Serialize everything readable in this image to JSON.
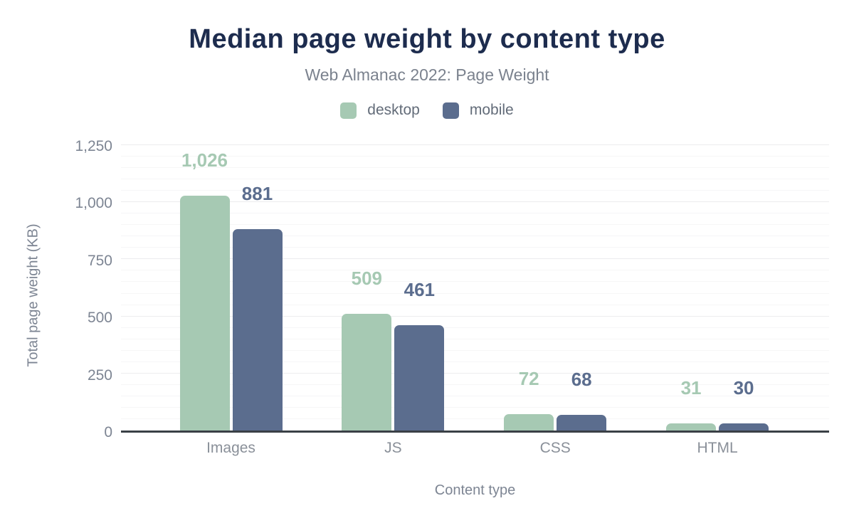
{
  "chart_data": {
    "type": "bar",
    "title": "Median page weight by content type",
    "subtitle": "Web Almanac 2022: Page Weight",
    "categories": [
      "Images",
      "JS",
      "CSS",
      "HTML"
    ],
    "series": [
      {
        "name": "desktop",
        "values": [
          1026,
          509,
          72,
          31
        ],
        "labels": [
          "1,026",
          "509",
          "72",
          "31"
        ],
        "color": "#a6c9b3"
      },
      {
        "name": "mobile",
        "values": [
          881,
          461,
          68,
          30
        ],
        "labels": [
          "881",
          "461",
          "68",
          "30"
        ],
        "color": "#5b6d8e"
      }
    ],
    "xlabel": "Content type",
    "ylabel": "Total page weight (KB)",
    "ylim": [
      0,
      1250
    ],
    "yticks": [
      {
        "value": 0,
        "label": "0"
      },
      {
        "value": 250,
        "label": "250"
      },
      {
        "value": 500,
        "label": "500"
      },
      {
        "value": 750,
        "label": "750"
      },
      {
        "value": 1000,
        "label": "1,000"
      },
      {
        "value": 1250,
        "label": "1,250"
      }
    ],
    "minor_grid_step": 50,
    "major_grid_step": 250,
    "grid": true,
    "legend_position": "top",
    "value_labels_shown": true
  },
  "colors": {
    "title_text": "#1d2c4e",
    "subtitle_text": "#7b828e",
    "axis_text": "#7d8593",
    "category_text": "#8a9099",
    "legend_text": "#636c79",
    "baseline": "#3a4046",
    "grid_major": "#ececee",
    "grid_minor": "#f6f6f7",
    "desktop_bar": "#a6c9b3",
    "mobile_bar": "#5b6d8e",
    "background": "#ffffff"
  }
}
